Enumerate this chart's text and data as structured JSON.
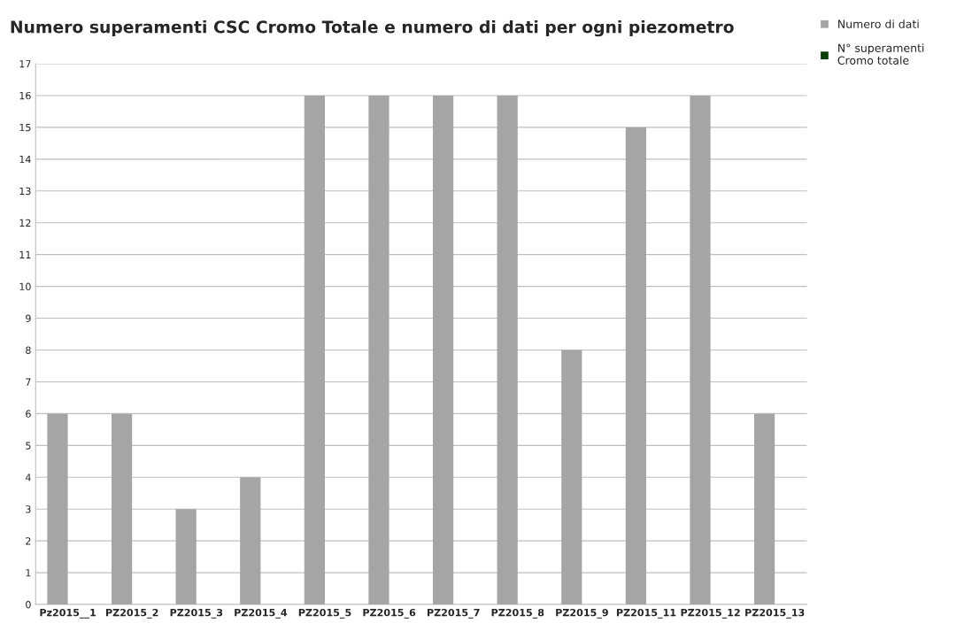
{
  "chart_data": {
    "type": "bar",
    "title": "Numero superamenti CSC Cromo Totale e numero di dati per ogni piezometro",
    "categories": [
      "Pz2015__1",
      "PZ2015_2",
      "PZ2015_3",
      "PZ2015_4",
      "PZ2015_5",
      "PZ2015_6",
      "PZ2015_7",
      "PZ2015_8",
      "PZ2015_9",
      "PZ2015_11",
      "PZ2015_12",
      "PZ2015_13"
    ],
    "series": [
      {
        "name": "Numero di dati",
        "color": "#a5a5a5",
        "values": [
          6,
          6,
          3,
          4,
          16,
          16,
          16,
          16,
          8,
          15,
          16,
          6
        ]
      },
      {
        "name": "N° superamenti Cromo totale",
        "color": "#0b3d0b",
        "values": [
          0,
          0,
          0,
          0,
          0,
          0,
          0,
          0,
          0,
          0,
          0,
          0
        ]
      }
    ],
    "ylim": [
      0,
      17
    ],
    "yticks": [
      0,
      1,
      2,
      3,
      4,
      5,
      6,
      7,
      8,
      9,
      10,
      11,
      12,
      13,
      14,
      15,
      16,
      17
    ],
    "grid": "y",
    "legend": "top right"
  }
}
